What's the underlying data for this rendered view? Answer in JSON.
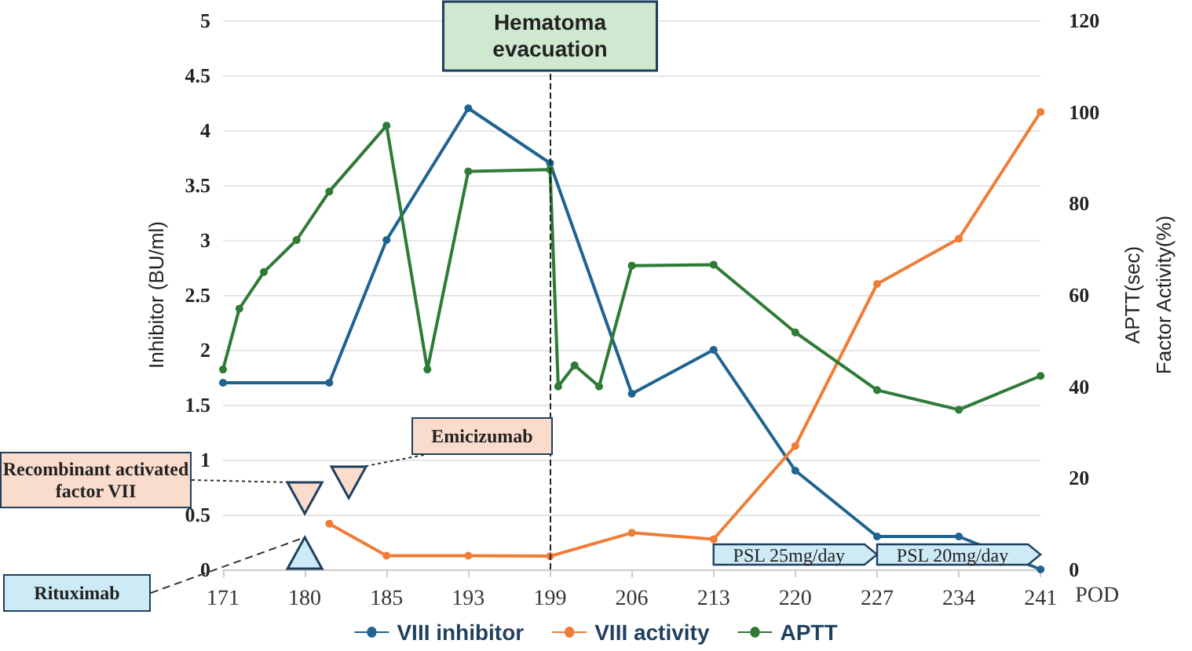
{
  "chart_data": {
    "type": "line",
    "xlabel": "POD",
    "ylabel": "Inhibitor (BU/ml)",
    "y2label": "APTT(sec)\nFactor Activity(%)",
    "categories": [
      "171",
      null,
      null,
      null,
      null,
      null,
      null,
      null,
      null,
      null,
      "180",
      null,
      null,
      null,
      null,
      null,
      null,
      null,
      null,
      null,
      "185",
      null,
      null,
      null,
      null,
      null,
      null,
      null,
      null,
      null,
      "193",
      null,
      null,
      null,
      null,
      null,
      null,
      null,
      null,
      null,
      "199",
      null,
      null,
      null,
      null,
      null,
      null,
      null,
      null,
      null,
      "206",
      null,
      null,
      null,
      null,
      null,
      null,
      null,
      null,
      null,
      "213",
      null,
      null,
      null,
      null,
      null,
      null,
      null,
      null,
      null,
      "220",
      null,
      null,
      null,
      null,
      null,
      null,
      null,
      null,
      null,
      "227",
      null,
      null,
      null,
      null,
      null,
      null,
      null,
      null,
      null,
      "234",
      null,
      null,
      null,
      null,
      null,
      null,
      null,
      null,
      null,
      "241"
    ],
    "series": [
      {
        "name": "VIII inhibitor",
        "color": "#1f6391",
        "values": [
          1.7,
          null,
          null,
          null,
          null,
          null,
          null,
          null,
          null,
          null,
          null,
          null,
          null,
          1.7,
          null,
          null,
          null,
          null,
          null,
          null,
          3.0,
          null,
          null,
          null,
          null,
          null,
          null,
          null,
          null,
          null,
          4.2,
          null,
          null,
          null,
          null,
          null,
          null,
          null,
          null,
          null,
          3.7,
          null,
          null,
          null,
          null,
          null,
          null,
          null,
          null,
          null,
          1.6,
          null,
          null,
          null,
          null,
          null,
          null,
          null,
          null,
          null,
          2.0,
          null,
          null,
          null,
          null,
          null,
          null,
          null,
          null,
          null,
          0.9,
          null,
          null,
          null,
          null,
          null,
          null,
          null,
          null,
          null,
          0.3,
          null,
          null,
          null,
          null,
          null,
          null,
          null,
          null,
          null,
          0.3,
          null,
          null,
          null,
          null,
          null,
          null,
          null,
          null,
          null,
          0
        ]
      },
      {
        "name": "VIII activity",
        "color": "#f07d36",
        "axis": "y2",
        "values": [
          null,
          null,
          null,
          null,
          null,
          null,
          null,
          null,
          null,
          null,
          null,
          null,
          null,
          10,
          null,
          null,
          null,
          null,
          null,
          null,
          3,
          null,
          null,
          null,
          null,
          null,
          null,
          null,
          null,
          null,
          3,
          null,
          null,
          null,
          null,
          null,
          null,
          null,
          null,
          null,
          2.9,
          null,
          null,
          null,
          null,
          null,
          null,
          null,
          null,
          null,
          8,
          null,
          null,
          null,
          null,
          null,
          null,
          null,
          null,
          null,
          6.6,
          null,
          null,
          null,
          null,
          null,
          null,
          null,
          null,
          null,
          27,
          null,
          null,
          null,
          null,
          null,
          null,
          null,
          null,
          null,
          62.4,
          null,
          null,
          null,
          null,
          null,
          null,
          null,
          null,
          null,
          72.3,
          null,
          null,
          null,
          null,
          null,
          null,
          null,
          null,
          null,
          100
        ]
      },
      {
        "name": "APTT",
        "color": "#2e7a36",
        "axis": "y2",
        "values": [
          43.7,
          null,
          57,
          null,
          null,
          65,
          null,
          null,
          null,
          72,
          null,
          null,
          null,
          82.6,
          null,
          null,
          null,
          null,
          null,
          null,
          97,
          null,
          null,
          null,
          null,
          43.7,
          null,
          null,
          null,
          null,
          87,
          null,
          null,
          null,
          null,
          null,
          null,
          null,
          null,
          null,
          87.4,
          40,
          null,
          44.6,
          null,
          null,
          40,
          null,
          null,
          null,
          66.4,
          null,
          null,
          null,
          null,
          null,
          null,
          null,
          null,
          null,
          66.6,
          null,
          null,
          null,
          null,
          null,
          null,
          null,
          null,
          null,
          51.8,
          null,
          null,
          null,
          null,
          null,
          null,
          null,
          null,
          null,
          39.2,
          null,
          null,
          null,
          null,
          null,
          null,
          null,
          null,
          null,
          34.9,
          null,
          null,
          null,
          null,
          null,
          null,
          null,
          null,
          null,
          42.3
        ]
      }
    ],
    "ylim": [
      0,
      5
    ],
    "yticks": [
      0,
      0.5,
      1,
      1.5,
      2,
      2.5,
      3,
      3.5,
      4,
      4.5,
      5
    ],
    "y2lim": [
      0,
      120
    ],
    "y2ticks": [
      0,
      20,
      40,
      60,
      80,
      100,
      120
    ],
    "ref_lines": [
      {
        "axis": "x",
        "value": "199",
        "label": "Hematoma evacuation",
        "color": "#222222",
        "line_style": "dashed"
      }
    ],
    "annotations": [
      "Recombinant activated factor VII",
      "Emicizumab",
      "Rituximab",
      "PSL 25mg/day",
      "PSL 20mg/day"
    ],
    "grid": "y",
    "legend": "bottom",
    "marker": "circle",
    "line_style": "solid"
  }
}
